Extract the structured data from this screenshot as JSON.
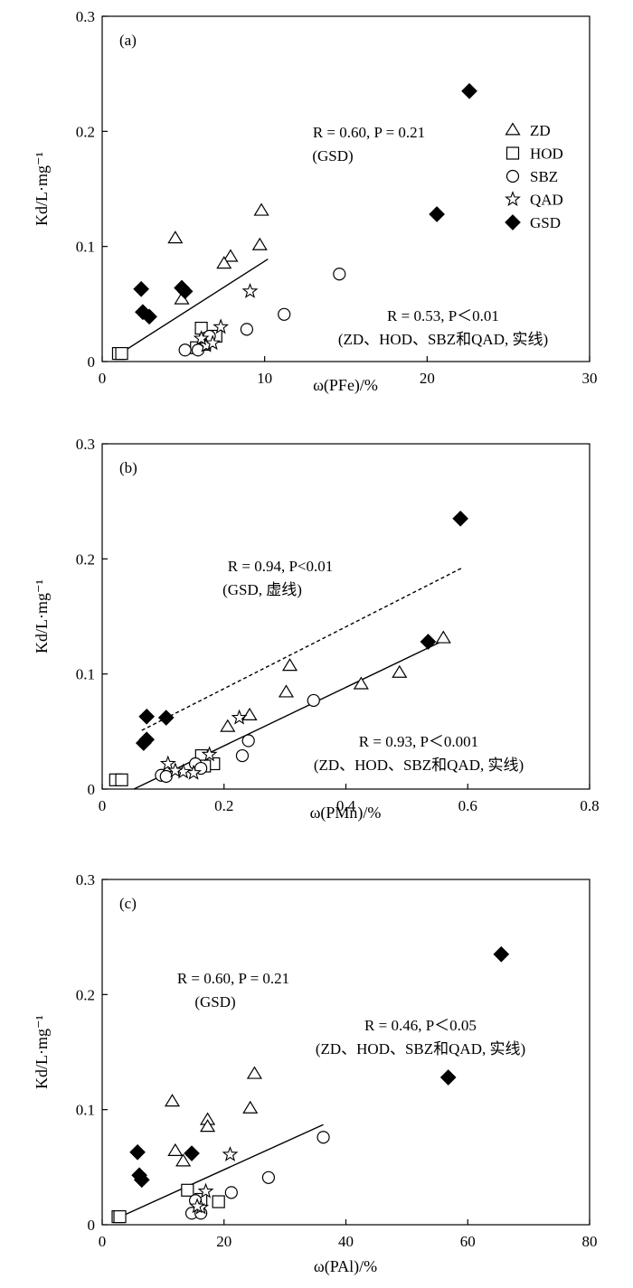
{
  "legend": {
    "items": [
      {
        "label": "ZD",
        "marker": "triangle"
      },
      {
        "label": "HOD",
        "marker": "square"
      },
      {
        "label": "SBZ",
        "marker": "circle"
      },
      {
        "label": "QAD",
        "marker": "star"
      },
      {
        "label": "GSD",
        "marker": "diamond"
      }
    ]
  },
  "colors": {
    "ink": "#000000",
    "background": "#ffffff"
  },
  "chart_data": [
    {
      "type": "scatter",
      "panel_label": "(a)",
      "xlabel": "ω(PFe)/%",
      "ylabel": "Kd/L·mg⁻¹",
      "xlim": [
        0,
        30
      ],
      "ylim": [
        0,
        0.3
      ],
      "xticks": [
        "0",
        "10",
        "20",
        "30"
      ],
      "yticks": [
        "0",
        "0.1",
        "0.2",
        "0.3"
      ],
      "legend_position": "right",
      "annotations": [
        {
          "line1": "R = 0.60, P = 0.21",
          "line2": "(GSD)"
        },
        {
          "line1": "R = 0.53, P＜0.01",
          "line2": "(ZD、HOD、SBZ和QAD, 实线)"
        }
      ],
      "fit_lines": [
        {
          "group": "ZD、HOD、SBZ和QAD",
          "style": "solid",
          "x": [
            1.0,
            10.2
          ],
          "y": [
            0.006,
            0.089
          ]
        }
      ],
      "series": [
        {
          "name": "ZD",
          "marker": "triangle",
          "x": [
            4.5,
            9.8,
            9.7,
            7.9,
            7.5,
            4.9
          ],
          "y": [
            0.107,
            0.131,
            0.101,
            0.091,
            0.085,
            0.054
          ]
        },
        {
          "name": "HOD",
          "marker": "square",
          "x": [
            1.0,
            1.2,
            6.1,
            6.6,
            7.0,
            5.8,
            6.3
          ],
          "y": [
            0.007,
            0.007,
            0.029,
            0.02,
            0.022,
            0.012,
            0.015
          ]
        },
        {
          "name": "SBZ",
          "marker": "circle",
          "x": [
            14.6,
            11.2,
            8.9,
            5.1,
            5.9,
            6.3,
            6.6
          ],
          "y": [
            0.076,
            0.041,
            0.028,
            0.01,
            0.01,
            0.02,
            0.022
          ]
        },
        {
          "name": "QAD",
          "marker": "star",
          "x": [
            9.1,
            7.3,
            6.4,
            6.8,
            6.1
          ],
          "y": [
            0.061,
            0.03,
            0.014,
            0.016,
            0.02
          ]
        },
        {
          "name": "GSD",
          "marker": "diamond",
          "x": [
            22.6,
            20.6,
            2.4,
            4.9,
            5.1,
            2.5,
            2.9
          ],
          "y": [
            0.235,
            0.128,
            0.063,
            0.064,
            0.061,
            0.043,
            0.039
          ]
        }
      ]
    },
    {
      "type": "scatter",
      "panel_label": "(b)",
      "xlabel": "ω(PMn)/%",
      "ylabel": "Kd/L·mg⁻¹",
      "xlim": [
        0,
        0.8
      ],
      "ylim": [
        0,
        0.3
      ],
      "xticks": [
        "0",
        "0.2",
        "0.4",
        "0.6",
        "0.8"
      ],
      "yticks": [
        "0",
        "0.1",
        "0.2",
        "0.3"
      ],
      "annotations": [
        {
          "line1": "R = 0.94, P<0.01",
          "line2": "(GSD, 虚线)"
        },
        {
          "line1": "R = 0.93, P＜0.001",
          "line2": "(ZD、HOD、SBZ和QAD, 实线)"
        }
      ],
      "fit_lines": [
        {
          "group": "GSD",
          "style": "dashed",
          "x": [
            0.065,
            0.59
          ],
          "y": [
            0.051,
            0.192
          ]
        },
        {
          "group": "ZD、HOD、SBZ和QAD",
          "style": "solid",
          "x": [
            0.052,
            0.56
          ],
          "y": [
            0.0,
            0.129
          ]
        }
      ],
      "series": [
        {
          "name": "ZD",
          "marker": "triangle",
          "x": [
            0.56,
            0.488,
            0.425,
            0.308,
            0.302,
            0.242,
            0.206
          ],
          "y": [
            0.131,
            0.101,
            0.091,
            0.107,
            0.084,
            0.064,
            0.054
          ]
        },
        {
          "name": "HOD",
          "marker": "square",
          "x": [
            0.022,
            0.032,
            0.163,
            0.183,
            0.168
          ],
          "y": [
            0.008,
            0.008,
            0.029,
            0.022,
            0.02
          ]
        },
        {
          "name": "SBZ",
          "marker": "circle",
          "x": [
            0.347,
            0.24,
            0.23,
            0.097,
            0.105,
            0.153,
            0.162
          ],
          "y": [
            0.077,
            0.042,
            0.029,
            0.012,
            0.011,
            0.022,
            0.018
          ]
        },
        {
          "name": "QAD",
          "marker": "star",
          "x": [
            0.225,
            0.176,
            0.108,
            0.15,
            0.133,
            0.12
          ],
          "y": [
            0.062,
            0.03,
            0.022,
            0.014,
            0.015,
            0.016
          ]
        },
        {
          "name": "GSD",
          "marker": "diamond",
          "x": [
            0.588,
            0.535,
            0.073,
            0.105,
            0.073,
            0.068
          ],
          "y": [
            0.235,
            0.128,
            0.063,
            0.062,
            0.043,
            0.04
          ]
        }
      ]
    },
    {
      "type": "scatter",
      "panel_label": "(c)",
      "xlabel": "ω(PAl)/%",
      "ylabel": "Kd/L·mg⁻¹",
      "xlim": [
        0,
        80
      ],
      "ylim": [
        0,
        0.3
      ],
      "xticks": [
        "0",
        "20",
        "40",
        "60",
        "80"
      ],
      "yticks": [
        "0",
        "0.1",
        "0.2",
        "0.3"
      ],
      "annotations": [
        {
          "line1": "R = 0.60, P = 0.21",
          "line2": "(GSD)"
        },
        {
          "line1": "R = 0.46, P＜0.05",
          "line2": "(ZD、HOD、SBZ和QAD, 实线)"
        }
      ],
      "fit_lines": [
        {
          "group": "ZD、HOD、SBZ和QAD",
          "style": "solid",
          "x": [
            2.6,
            36.3
          ],
          "y": [
            0.006,
            0.087
          ]
        }
      ],
      "series": [
        {
          "name": "ZD",
          "marker": "triangle",
          "x": [
            11.5,
            25.0,
            24.3,
            17.3,
            17.3,
            12.0,
            13.3
          ],
          "y": [
            0.107,
            0.131,
            0.101,
            0.091,
            0.085,
            0.064,
            0.055
          ]
        },
        {
          "name": "HOD",
          "marker": "square",
          "x": [
            2.6,
            2.9,
            14.0,
            19.1,
            16.2
          ],
          "y": [
            0.007,
            0.007,
            0.03,
            0.02,
            0.022
          ]
        },
        {
          "name": "SBZ",
          "marker": "circle",
          "x": [
            36.3,
            27.3,
            21.2,
            14.7,
            16.2,
            15.3
          ],
          "y": [
            0.076,
            0.041,
            0.028,
            0.01,
            0.01,
            0.021
          ]
        },
        {
          "name": "QAD",
          "marker": "star",
          "x": [
            21.0,
            17.0,
            16.2,
            15.6
          ],
          "y": [
            0.061,
            0.029,
            0.015,
            0.016
          ]
        },
        {
          "name": "GSD",
          "marker": "diamond",
          "x": [
            65.5,
            56.8,
            5.8,
            14.7,
            6.1,
            6.5
          ],
          "y": [
            0.235,
            0.128,
            0.063,
            0.062,
            0.043,
            0.039
          ]
        }
      ]
    }
  ]
}
